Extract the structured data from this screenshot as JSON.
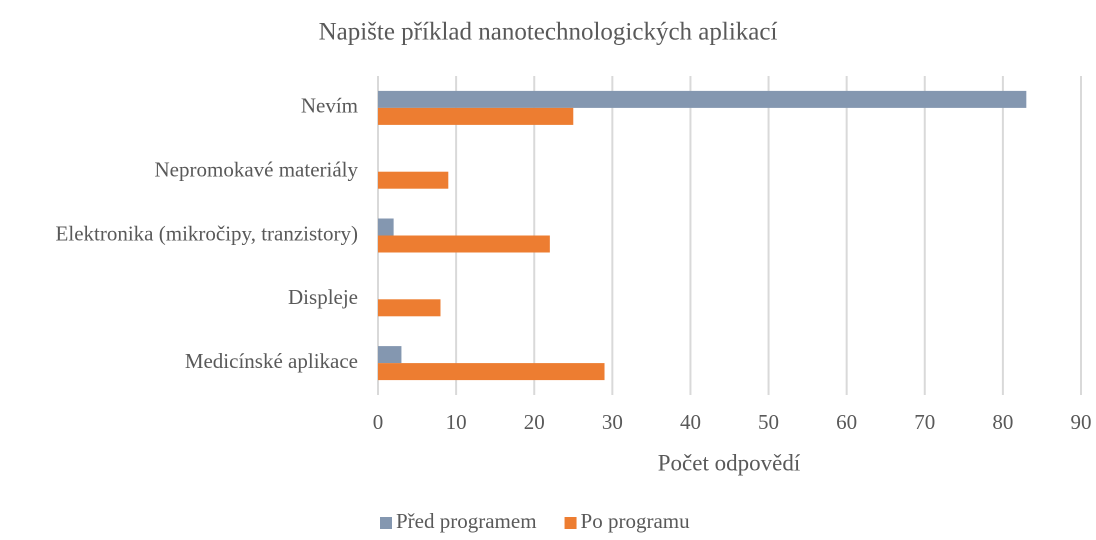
{
  "chart_data": {
    "type": "barh",
    "title": "Napište příklad nanotechnologických aplikací",
    "xlabel": "Počet odpovědí",
    "categories": [
      "Nevím",
      "Nepromokavé materiály",
      "Elektronika (mikročipy, tranzistory)",
      "Displeje",
      "Medicínské aplikace"
    ],
    "series": [
      {
        "name": "Před programem",
        "color": "#8497b0",
        "values": [
          83,
          0,
          2,
          0,
          3
        ]
      },
      {
        "name": "Po programu",
        "color": "#ed7d31",
        "values": [
          25,
          9,
          22,
          8,
          29
        ]
      }
    ],
    "xlim": [
      0,
      90
    ],
    "xticks": [
      0,
      10,
      20,
      30,
      40,
      50,
      60,
      70,
      80,
      90
    ],
    "grid": true,
    "legend": "bottom"
  }
}
